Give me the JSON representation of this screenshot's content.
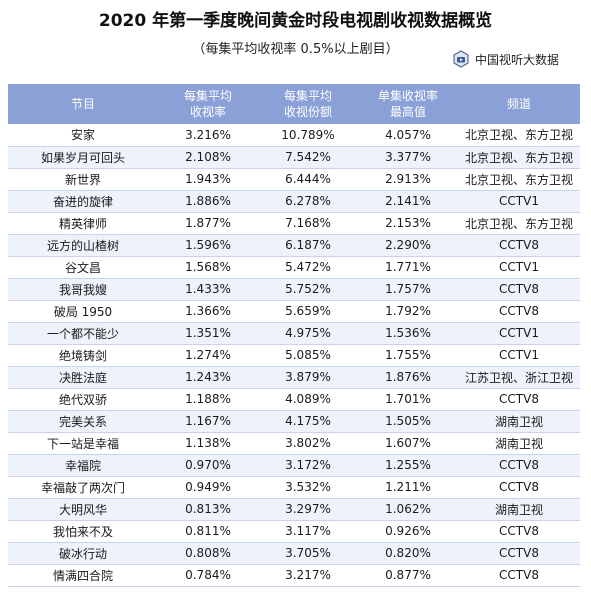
{
  "title": "2020 年第一季度晚间黄金时段电视剧收视数据概览",
  "subtitle": "（每集平均收视率 0.5%以上剧目）",
  "brand": {
    "name": "中国视听大数据",
    "icon": "cvb-logo-icon"
  },
  "colors": {
    "header_bg": "#8aa0d6",
    "stripe": "#eef2fb",
    "rule": "#c9d3ee"
  },
  "table": {
    "headers": [
      [
        "节目"
      ],
      [
        "每集平均",
        "收视率"
      ],
      [
        "每集平均",
        "收视份额"
      ],
      [
        "单集收视率",
        "最高值"
      ],
      [
        "频道"
      ]
    ],
    "rows": [
      [
        "安家",
        "3.216%",
        "10.789%",
        "4.057%",
        "北京卫视、东方卫视"
      ],
      [
        "如果岁月可回头",
        "2.108%",
        "7.542%",
        "3.377%",
        "北京卫视、东方卫视"
      ],
      [
        "新世界",
        "1.943%",
        "6.444%",
        "2.913%",
        "北京卫视、东方卫视"
      ],
      [
        "奋进的旋律",
        "1.886%",
        "6.278%",
        "2.141%",
        "CCTV1"
      ],
      [
        "精英律师",
        "1.877%",
        "7.168%",
        "2.153%",
        "北京卫视、东方卫视"
      ],
      [
        "远方的山楂树",
        "1.596%",
        "6.187%",
        "2.290%",
        "CCTV8"
      ],
      [
        "谷文昌",
        "1.568%",
        "5.472%",
        "1.771%",
        "CCTV1"
      ],
      [
        "我哥我嫂",
        "1.433%",
        "5.752%",
        "1.757%",
        "CCTV8"
      ],
      [
        "破局 1950",
        "1.366%",
        "5.659%",
        "1.792%",
        "CCTV8"
      ],
      [
        "一个都不能少",
        "1.351%",
        "4.975%",
        "1.536%",
        "CCTV1"
      ],
      [
        "绝境铸剑",
        "1.274%",
        "5.085%",
        "1.755%",
        "CCTV1"
      ],
      [
        "决胜法庭",
        "1.243%",
        "3.879%",
        "1.876%",
        "江苏卫视、浙江卫视"
      ],
      [
        "绝代双骄",
        "1.188%",
        "4.089%",
        "1.701%",
        "CCTV8"
      ],
      [
        "完美关系",
        "1.167%",
        "4.175%",
        "1.505%",
        "湖南卫视"
      ],
      [
        "下一站是幸福",
        "1.138%",
        "3.802%",
        "1.607%",
        "湖南卫视"
      ],
      [
        "幸福院",
        "0.970%",
        "3.172%",
        "1.255%",
        "CCTV8"
      ],
      [
        "幸福敲了两次门",
        "0.949%",
        "3.532%",
        "1.211%",
        "CCTV8"
      ],
      [
        "大明风华",
        "0.813%",
        "3.297%",
        "1.062%",
        "湖南卫视"
      ],
      [
        "我怕来不及",
        "0.811%",
        "3.117%",
        "0.926%",
        "CCTV8"
      ],
      [
        "破冰行动",
        "0.808%",
        "3.705%",
        "0.820%",
        "CCTV8"
      ],
      [
        "情满四合院",
        "0.784%",
        "3.217%",
        "0.877%",
        "CCTV8"
      ]
    ]
  }
}
